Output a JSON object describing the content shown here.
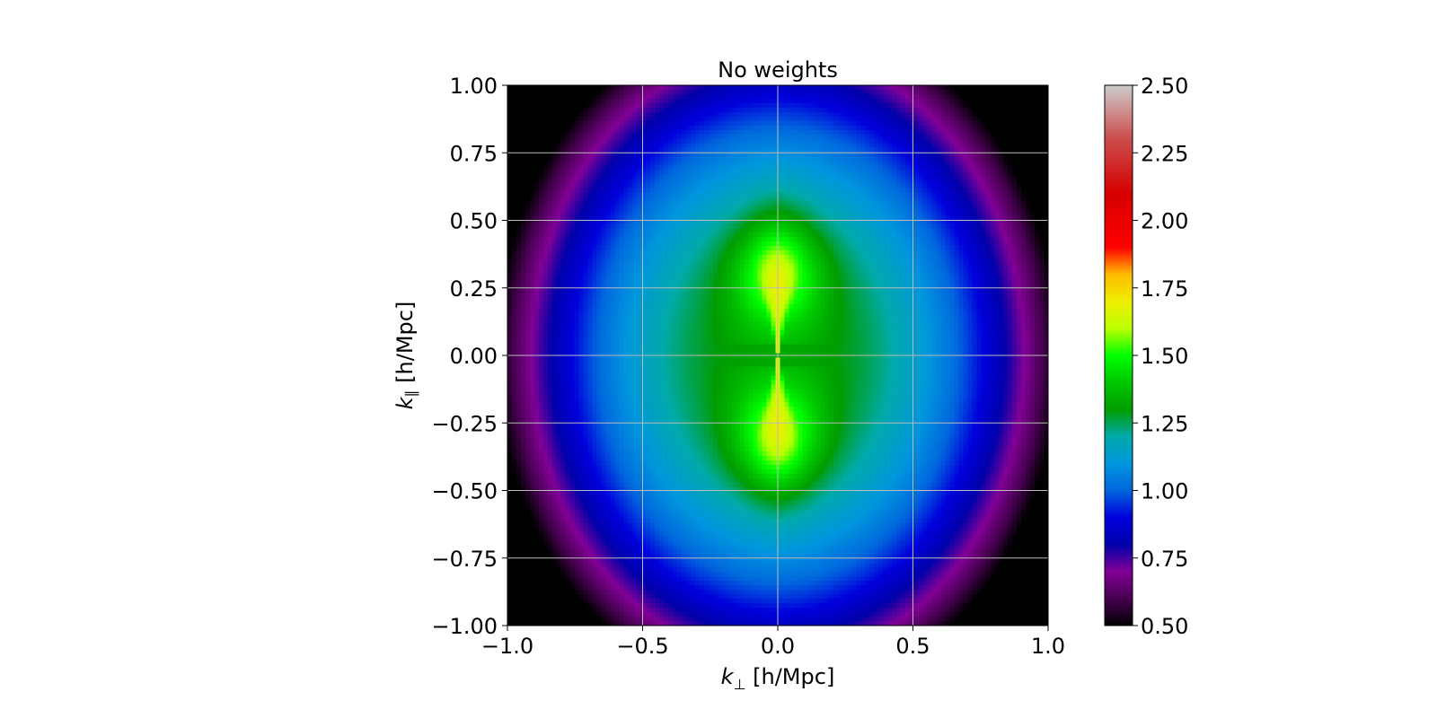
{
  "chart_data": {
    "type": "heatmap",
    "title": "No weights",
    "xlabel": {
      "symbol": "k",
      "subscript": "⊥",
      "unit": " [h/Mpc]"
    },
    "ylabel": {
      "symbol": "k",
      "subscript": "∥",
      "unit": " [h/Mpc]"
    },
    "xlim": [
      -1.0,
      1.0
    ],
    "ylim": [
      -1.0,
      1.0
    ],
    "x_ticks": [
      -1.0,
      -0.5,
      0.0,
      0.5,
      1.0
    ],
    "x_tick_labels": [
      "−1.0",
      "−0.5",
      "0.0",
      "0.5",
      "1.0"
    ],
    "y_ticks": [
      1.0,
      0.75,
      0.5,
      0.25,
      0.0,
      -0.25,
      -0.5,
      -0.75,
      -1.0
    ],
    "y_tick_labels": [
      "1.00",
      "0.75",
      "0.50",
      "0.25",
      "0.00",
      "−0.25",
      "−0.50",
      "−0.75",
      "−1.00"
    ],
    "grid": true,
    "colorbar": {
      "colormap": "nipy_spectral",
      "range": [
        0.5,
        2.5
      ],
      "ticks": [
        2.5,
        2.25,
        2.0,
        1.75,
        1.5,
        1.25,
        1.0,
        0.75,
        0.5
      ],
      "tick_labels": [
        "2.50",
        "2.25",
        "2.00",
        "1.75",
        "1.50",
        "1.25",
        "1.00",
        "0.75",
        "0.50"
      ],
      "placement": "right"
    },
    "field_description": {
      "axis_value": 1.75,
      "center_peak_approx": 1.9,
      "lobe_center_y": 0.3,
      "lobe_value": 1.5,
      "corner_value": 0.65
    }
  }
}
